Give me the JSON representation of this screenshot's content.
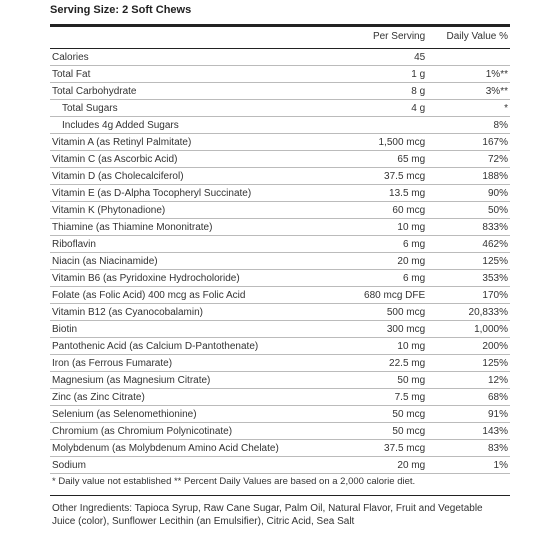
{
  "serving": "Serving Size: 2 Soft Chews",
  "headers": {
    "perServing": "Per Serving",
    "dv": "Daily Value %"
  },
  "rows": [
    {
      "name": "Calories",
      "amt": "45",
      "dv": ""
    },
    {
      "name": "Total Fat",
      "amt": "1 g",
      "dv": "1%**"
    },
    {
      "name": "Total Carbohydrate",
      "amt": "8 g",
      "dv": "3%**"
    },
    {
      "name": "Total Sugars",
      "amt": "4 g",
      "dv": "*",
      "indent": true
    },
    {
      "name": "Includes 4g Added Sugars",
      "amt": "",
      "dv": "8%",
      "indent": true
    },
    {
      "name": "Vitamin A (as Retinyl Palmitate)",
      "amt": "1,500 mcg",
      "dv": "167%"
    },
    {
      "name": "Vitamin C (as Ascorbic Acid)",
      "amt": "65 mg",
      "dv": "72%"
    },
    {
      "name": "Vitamin D (as Cholecalciferol)",
      "amt": "37.5 mcg",
      "dv": "188%"
    },
    {
      "name": "Vitamin E (as D-Alpha Tocopheryl Succinate)",
      "amt": "13.5 mg",
      "dv": "90%"
    },
    {
      "name": "Vitamin K (Phytonadione)",
      "amt": "60 mcg",
      "dv": "50%"
    },
    {
      "name": "Thiamine (as Thiamine Mononitrate)",
      "amt": "10 mg",
      "dv": "833%"
    },
    {
      "name": "Riboflavin",
      "amt": "6 mg",
      "dv": "462%"
    },
    {
      "name": "Niacin (as Niacinamide)",
      "amt": "20 mg",
      "dv": "125%"
    },
    {
      "name": "Vitamin B6 (as Pyridoxine Hydrocholoride)",
      "amt": "6 mg",
      "dv": "353%"
    },
    {
      "name": "Folate (as Folic Acid)  400 mcg as Folic Acid",
      "amt": "680 mcg DFE",
      "dv": "170%"
    },
    {
      "name": "Vitamin B12 (as Cyanocobalamin)",
      "amt": "500 mcg",
      "dv": "20,833%"
    },
    {
      "name": "Biotin",
      "amt": "300 mcg",
      "dv": "1,000%"
    },
    {
      "name": "Pantothenic Acid (as Calcium D-Pantothenate)",
      "amt": "10 mg",
      "dv": "200%"
    },
    {
      "name": "Iron (as Ferrous Fumarate)",
      "amt": "22.5 mg",
      "dv": "125%"
    },
    {
      "name": "Magnesium (as Magnesium Citrate)",
      "amt": "50 mg",
      "dv": "12%"
    },
    {
      "name": "Zinc (as Zinc Citrate)",
      "amt": "7.5 mg",
      "dv": "68%"
    },
    {
      "name": "Selenium (as Selenomethionine)",
      "amt": "50 mcg",
      "dv": "91%"
    },
    {
      "name": "Chromium (as Chromium Polynicotinate)",
      "amt": "50 mcg",
      "dv": "143%"
    },
    {
      "name": "Molybdenum (as Molybdenum Amino Acid Chelate)",
      "amt": "37.5 mcg",
      "dv": "83%"
    },
    {
      "name": "Sodium",
      "amt": "20 mg",
      "dv": "1%"
    }
  ],
  "footnote": "* Daily value not established   ** Percent Daily Values are based on a 2,000 calorie diet.",
  "other": "Other Ingredients: Tapioca Syrup, Raw Cane Sugar, Palm Oil, Natural Flavor, Fruit and Vegetable Juice (color), Sunflower Lecithin (an Emulsifier), Citric Acid, Sea Salt"
}
